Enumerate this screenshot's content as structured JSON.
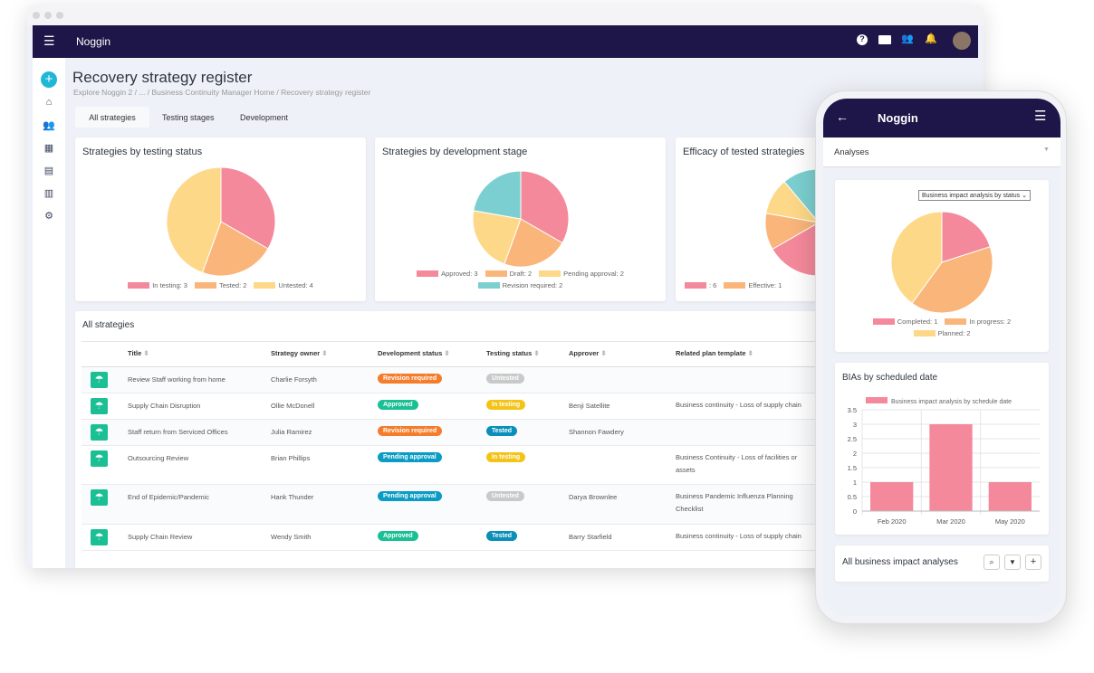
{
  "app": {
    "title": "Noggin"
  },
  "page": {
    "title": "Recovery strategy register",
    "breadcrumb": "Explore Noggin 2 / ... / Business Continuity Manager Home / Recovery strategy register"
  },
  "tabs": [
    {
      "label": "All strategies",
      "active": true
    },
    {
      "label": "Testing stages"
    },
    {
      "label": "Development"
    }
  ],
  "header_icons": [
    "help-icon",
    "contact-card-icon",
    "people-icon",
    "bell-icon",
    "avatar"
  ],
  "sidebar_icons": [
    "add-icon",
    "home-icon",
    "people-icon",
    "store-icon",
    "id-card-icon",
    "library-icon",
    "gear-icon"
  ],
  "colors": {
    "header": "#1e1548",
    "pink": "#f4899b",
    "orange": "#f9b57a",
    "yellow": "#fdd888",
    "teal": "#7ccfd0",
    "accent": "#1bbf94"
  },
  "chart_data": [
    {
      "type": "pie",
      "title": "Strategies by testing status",
      "labels": [
        "In testing",
        "Tested",
        "Untested"
      ],
      "values": [
        3,
        2,
        4
      ],
      "legend": [
        "In testing: 3",
        "Tested: 2",
        "Untested: 4"
      ],
      "colors": [
        "#f4899b",
        "#f9b57a",
        "#fdd888"
      ]
    },
    {
      "type": "pie",
      "title": "Strategies by development stage",
      "labels": [
        "Approved",
        "Draft",
        "Pending approval",
        "Revision required"
      ],
      "values": [
        3,
        2,
        2,
        2
      ],
      "legend": [
        "Approved: 3",
        "Draft: 2",
        "Pending approval: 2",
        "Revision required: 2"
      ],
      "colors": [
        "#f4899b",
        "#f9b57a",
        "#fdd888",
        "#7ccfd0"
      ]
    },
    {
      "type": "pie",
      "title": "Efficacy of tested strategies",
      "labels": [
        "",
        "Effective",
        "",
        ""
      ],
      "values": [
        6,
        1,
        1,
        1
      ],
      "legend": [
        ": 6",
        "Effective: 1"
      ],
      "colors": [
        "#f4899b",
        "#f9b57a",
        "#fdd888",
        "#7ccfd0"
      ]
    },
    {
      "type": "pie",
      "title": "Business impact analysis by status",
      "labels": [
        "Completed",
        "In progress",
        "Planned"
      ],
      "values": [
        1,
        2,
        2
      ],
      "legend": [
        "Completed: 1",
        "In progress: 2",
        "Planned: 2"
      ],
      "colors": [
        "#f4899b",
        "#f9b57a",
        "#fdd888"
      ]
    },
    {
      "type": "bar",
      "title": "BIAs by scheduled date",
      "series": [
        {
          "name": "Business impact analysis by schedule date",
          "values": [
            1,
            3,
            1
          ]
        }
      ],
      "categories": [
        "Feb 2020",
        "Mar 2020",
        "May 2020"
      ],
      "ylim": [
        0,
        3.5
      ],
      "yticks": [
        "0",
        "0.5",
        "1",
        "1.5",
        "2",
        "2.5",
        "3",
        "3.5"
      ],
      "grid": true,
      "legend": "top",
      "color": "#f4899b"
    }
  ],
  "table": {
    "title": "All strategies",
    "columns": [
      "Title",
      "Strategy owner",
      "Development status",
      "Testing status",
      "Approver",
      "Related plan template"
    ],
    "rows": [
      [
        "Review Staff working from home",
        "Charlie Forsyth",
        "Revision required",
        "Untested",
        "",
        ""
      ],
      [
        "Supply Chain Disruption",
        "Ollie McDonell",
        "Approved",
        "In testing",
        "Benji Satellite",
        "Business continuity - Loss of supply chain"
      ],
      [
        "Staff return from Serviced Offices",
        "Julia Ramirez",
        "Revision required",
        "Tested",
        "Shannon Fawdery",
        ""
      ],
      [
        "Outsourcing Review",
        "Brian Phillips",
        "Pending approval",
        "In testing",
        "",
        "Business Continuity - Loss of facilities or assets"
      ],
      [
        "End of Epidemic/Pandemic",
        "Hank Thunder",
        "Pending approval",
        "Untested",
        "Darya Brownlee",
        "Business Pandemic Influenza Planning Checklist"
      ],
      [
        "Supply Chain Review",
        "Wendy Smith",
        "Approved",
        "Tested",
        "Barry Starfield",
        "Business continuity - Loss of supply chain"
      ]
    ]
  },
  "badge_colors": {
    "Revision required": "#f47c2a",
    "Approved": "#1bbf94",
    "Pending approval": "#0a9cc4",
    "Untested": "#c9c9c9",
    "In testing": "#f3c317",
    "Tested": "#0a8fb8"
  },
  "phone": {
    "title": "Noggin",
    "section": "Analyses",
    "select_value": "Business impact analysis by status",
    "list_title": "All business impact analyses"
  }
}
